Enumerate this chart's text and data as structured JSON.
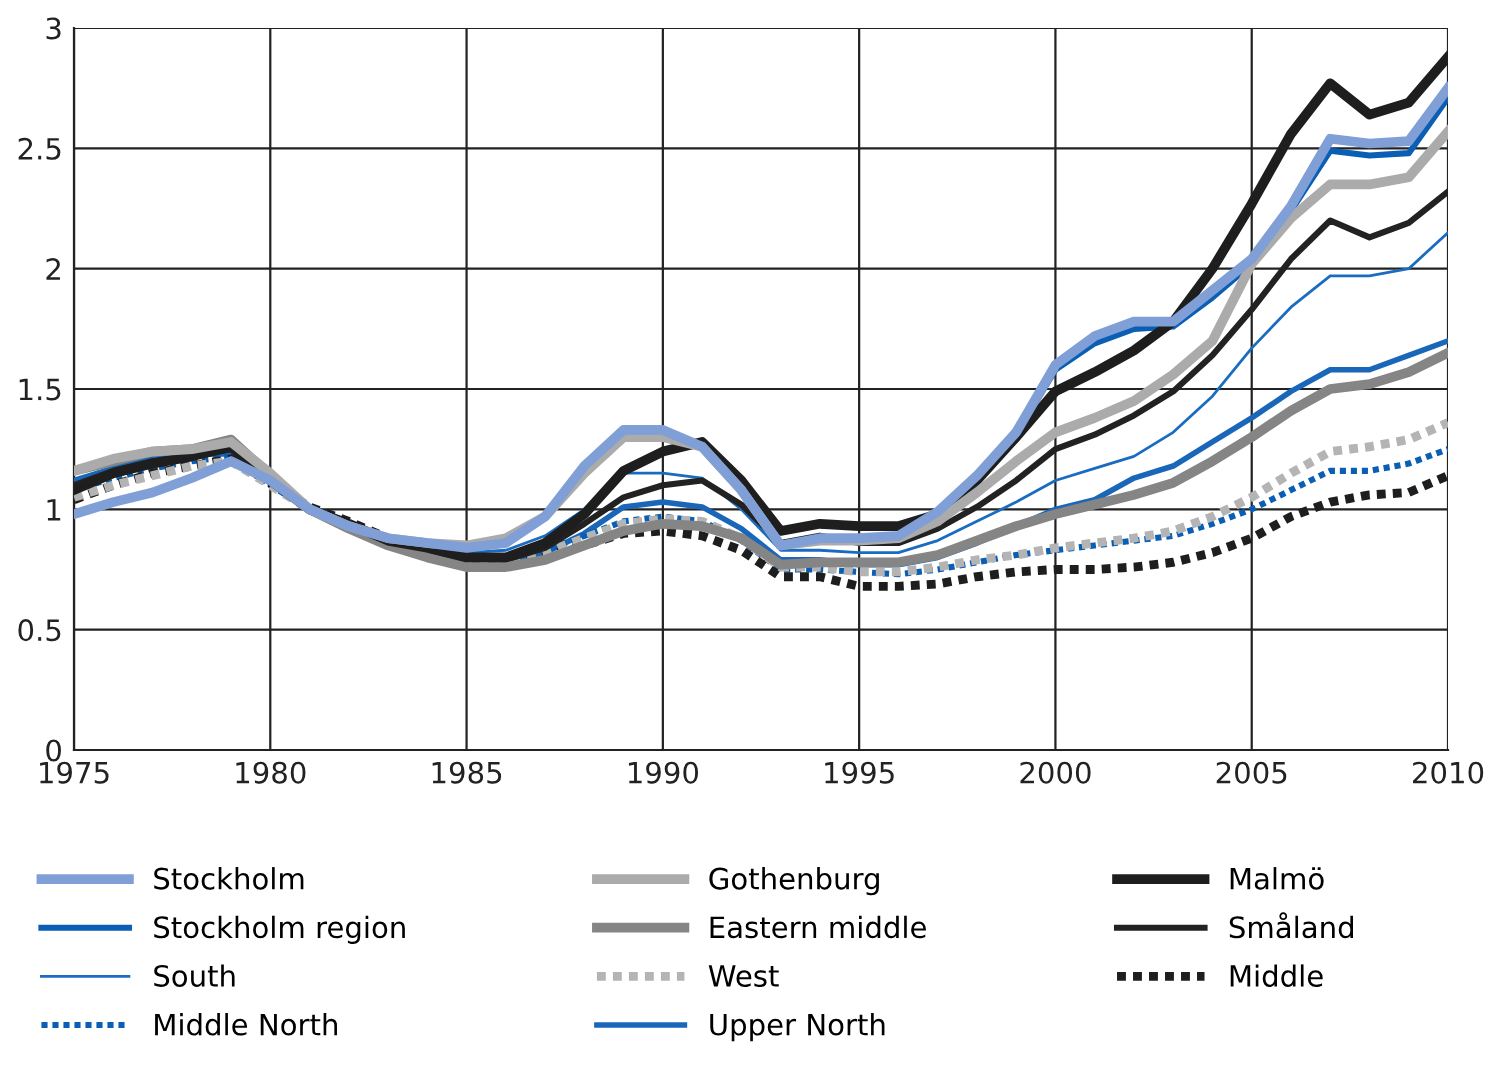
{
  "chart_data": {
    "type": "line",
    "x": [
      1975,
      1976,
      1977,
      1978,
      1979,
      1980,
      1981,
      1982,
      1983,
      1984,
      1985,
      1986,
      1987,
      1988,
      1989,
      1990,
      1991,
      1992,
      1993,
      1994,
      1995,
      1996,
      1997,
      1998,
      1999,
      2000,
      2001,
      2002,
      2003,
      2004,
      2005,
      2006,
      2007,
      2008,
      2009,
      2010
    ],
    "xlim": [
      1975,
      2010
    ],
    "xticks": [
      1975,
      1980,
      1985,
      1990,
      1995,
      2000,
      2005,
      2010
    ],
    "ylim": [
      0,
      3
    ],
    "yticks": [
      0,
      0.5,
      1,
      1.5,
      2,
      2.5,
      3
    ],
    "grid": true,
    "legend": "bottom",
    "marker": "none",
    "series": [
      {
        "name": "Stockholm",
        "color": "#7f9fd6",
        "line_style": "solid",
        "values": [
          0.98,
          1.03,
          1.07,
          1.13,
          1.2,
          1.12,
          1.0,
          0.93,
          0.88,
          0.86,
          0.84,
          0.86,
          0.97,
          1.18,
          1.33,
          1.33,
          1.26,
          1.08,
          0.85,
          0.88,
          0.88,
          0.89,
          0.99,
          1.14,
          1.32,
          1.6,
          1.72,
          1.78,
          1.78,
          1.91,
          2.04,
          2.26,
          2.54,
          2.52,
          2.53,
          2.75
        ]
      },
      {
        "name": "Gothenburg",
        "color": "#ababab",
        "line_style": "solid",
        "values": [
          1.16,
          1.21,
          1.24,
          1.25,
          1.28,
          1.15,
          1.0,
          0.93,
          0.88,
          0.86,
          0.85,
          0.88,
          0.97,
          1.15,
          1.3,
          1.3,
          1.26,
          1.08,
          0.85,
          0.87,
          0.87,
          0.88,
          0.95,
          1.07,
          1.2,
          1.32,
          1.38,
          1.45,
          1.56,
          1.7,
          2.02,
          2.21,
          2.35,
          2.35,
          2.38,
          2.57
        ]
      },
      {
        "name": "Malmö",
        "color": "#1e1e1e",
        "line_style": "solid",
        "values": [
          1.08,
          1.15,
          1.19,
          1.22,
          1.26,
          1.12,
          1.0,
          0.94,
          0.87,
          0.84,
          0.8,
          0.8,
          0.86,
          0.98,
          1.16,
          1.24,
          1.28,
          1.12,
          0.91,
          0.94,
          0.93,
          0.93,
          0.98,
          1.12,
          1.3,
          1.49,
          1.57,
          1.66,
          1.78,
          2.0,
          2.27,
          2.56,
          2.77,
          2.64,
          2.69,
          2.88
        ]
      },
      {
        "name": "Stockholm region",
        "color": "#0a5fb4",
        "line_style": "solid",
        "values": [
          null,
          null,
          null,
          null,
          null,
          null,
          null,
          null,
          null,
          null,
          null,
          null,
          null,
          null,
          null,
          null,
          null,
          null,
          null,
          null,
          null,
          null,
          null,
          null,
          1.31,
          1.58,
          1.69,
          1.75,
          1.76,
          1.88,
          2.02,
          2.24,
          2.49,
          2.47,
          2.48,
          2.71
        ]
      },
      {
        "name": "Eastern middle",
        "color": "#858585",
        "line_style": "solid",
        "values": [
          1.16,
          1.2,
          1.24,
          1.25,
          1.29,
          1.14,
          1.0,
          0.92,
          0.85,
          0.8,
          0.76,
          0.76,
          0.79,
          0.85,
          0.91,
          0.94,
          0.93,
          0.88,
          0.77,
          0.78,
          0.78,
          0.78,
          0.81,
          0.87,
          0.93,
          0.98,
          1.02,
          1.06,
          1.11,
          1.2,
          1.3,
          1.41,
          1.5,
          1.52,
          1.57,
          1.65
        ]
      },
      {
        "name": "Småland",
        "color": "#222222",
        "line_style": "solid",
        "values": [
          1.1,
          1.16,
          1.2,
          1.22,
          1.25,
          1.13,
          1.0,
          0.93,
          0.86,
          0.83,
          0.8,
          0.79,
          0.84,
          0.94,
          1.05,
          1.1,
          1.12,
          1.02,
          0.86,
          0.89,
          0.86,
          0.86,
          0.92,
          1.01,
          1.12,
          1.25,
          1.31,
          1.39,
          1.49,
          1.64,
          1.83,
          2.04,
          2.2,
          2.13,
          2.19,
          2.32
        ]
      },
      {
        "name": "South",
        "color": "#1a6cc0",
        "line_style": "solid",
        "values": [
          1.1,
          1.15,
          1.19,
          1.22,
          1.24,
          1.12,
          1.0,
          0.93,
          0.87,
          0.84,
          0.82,
          0.83,
          0.89,
          1.0,
          1.15,
          1.15,
          1.13,
          1.0,
          0.83,
          0.83,
          0.82,
          0.82,
          0.87,
          0.95,
          1.03,
          1.12,
          1.17,
          1.22,
          1.32,
          1.47,
          1.67,
          1.84,
          1.97,
          1.97,
          2.0,
          2.15
        ]
      },
      {
        "name": "West",
        "color": "#b4b4b4",
        "line_style": "dotted",
        "values": [
          1.05,
          1.1,
          1.14,
          1.18,
          1.2,
          1.1,
          1.0,
          0.93,
          0.86,
          0.82,
          0.79,
          0.79,
          0.82,
          0.88,
          0.94,
          0.96,
          0.95,
          0.88,
          0.76,
          0.76,
          0.74,
          0.74,
          0.76,
          0.79,
          0.81,
          0.84,
          0.86,
          0.88,
          0.91,
          0.97,
          1.05,
          1.15,
          1.24,
          1.26,
          1.29,
          1.36
        ]
      },
      {
        "name": "Middle",
        "color": "#1e1e1e",
        "line_style": "dotted",
        "values": [
          1.04,
          1.1,
          1.15,
          1.18,
          1.21,
          1.11,
          1.01,
          0.95,
          0.88,
          0.84,
          0.8,
          0.79,
          0.81,
          0.85,
          0.9,
          0.91,
          0.89,
          0.83,
          0.72,
          0.72,
          0.68,
          0.68,
          0.69,
          0.72,
          0.74,
          0.75,
          0.75,
          0.76,
          0.78,
          0.82,
          0.88,
          0.97,
          1.03,
          1.06,
          1.07,
          1.14
        ]
      },
      {
        "name": "Middle North",
        "color": "#0a5fb4",
        "line_style": "dotted",
        "values": [
          1.08,
          1.13,
          1.17,
          1.2,
          1.22,
          1.1,
          1.0,
          0.93,
          0.86,
          0.82,
          0.8,
          0.8,
          0.83,
          0.89,
          0.95,
          0.97,
          0.95,
          0.87,
          0.75,
          0.75,
          0.74,
          0.73,
          0.75,
          0.78,
          0.81,
          0.83,
          0.85,
          0.87,
          0.89,
          0.94,
          1.0,
          1.08,
          1.16,
          1.16,
          1.19,
          1.25
        ]
      },
      {
        "name": "Upper North",
        "color": "#1a66b8",
        "line_style": "solid",
        "values": [
          1.12,
          1.17,
          1.21,
          1.23,
          1.23,
          1.11,
          1.0,
          0.93,
          0.86,
          0.82,
          0.79,
          0.78,
          0.82,
          0.9,
          1.01,
          1.03,
          1.01,
          0.92,
          0.79,
          0.79,
          0.77,
          0.77,
          0.8,
          0.86,
          0.93,
          1.0,
          1.04,
          1.13,
          1.18,
          1.28,
          1.38,
          1.49,
          1.58,
          1.58,
          1.64,
          1.7
        ]
      }
    ]
  }
}
